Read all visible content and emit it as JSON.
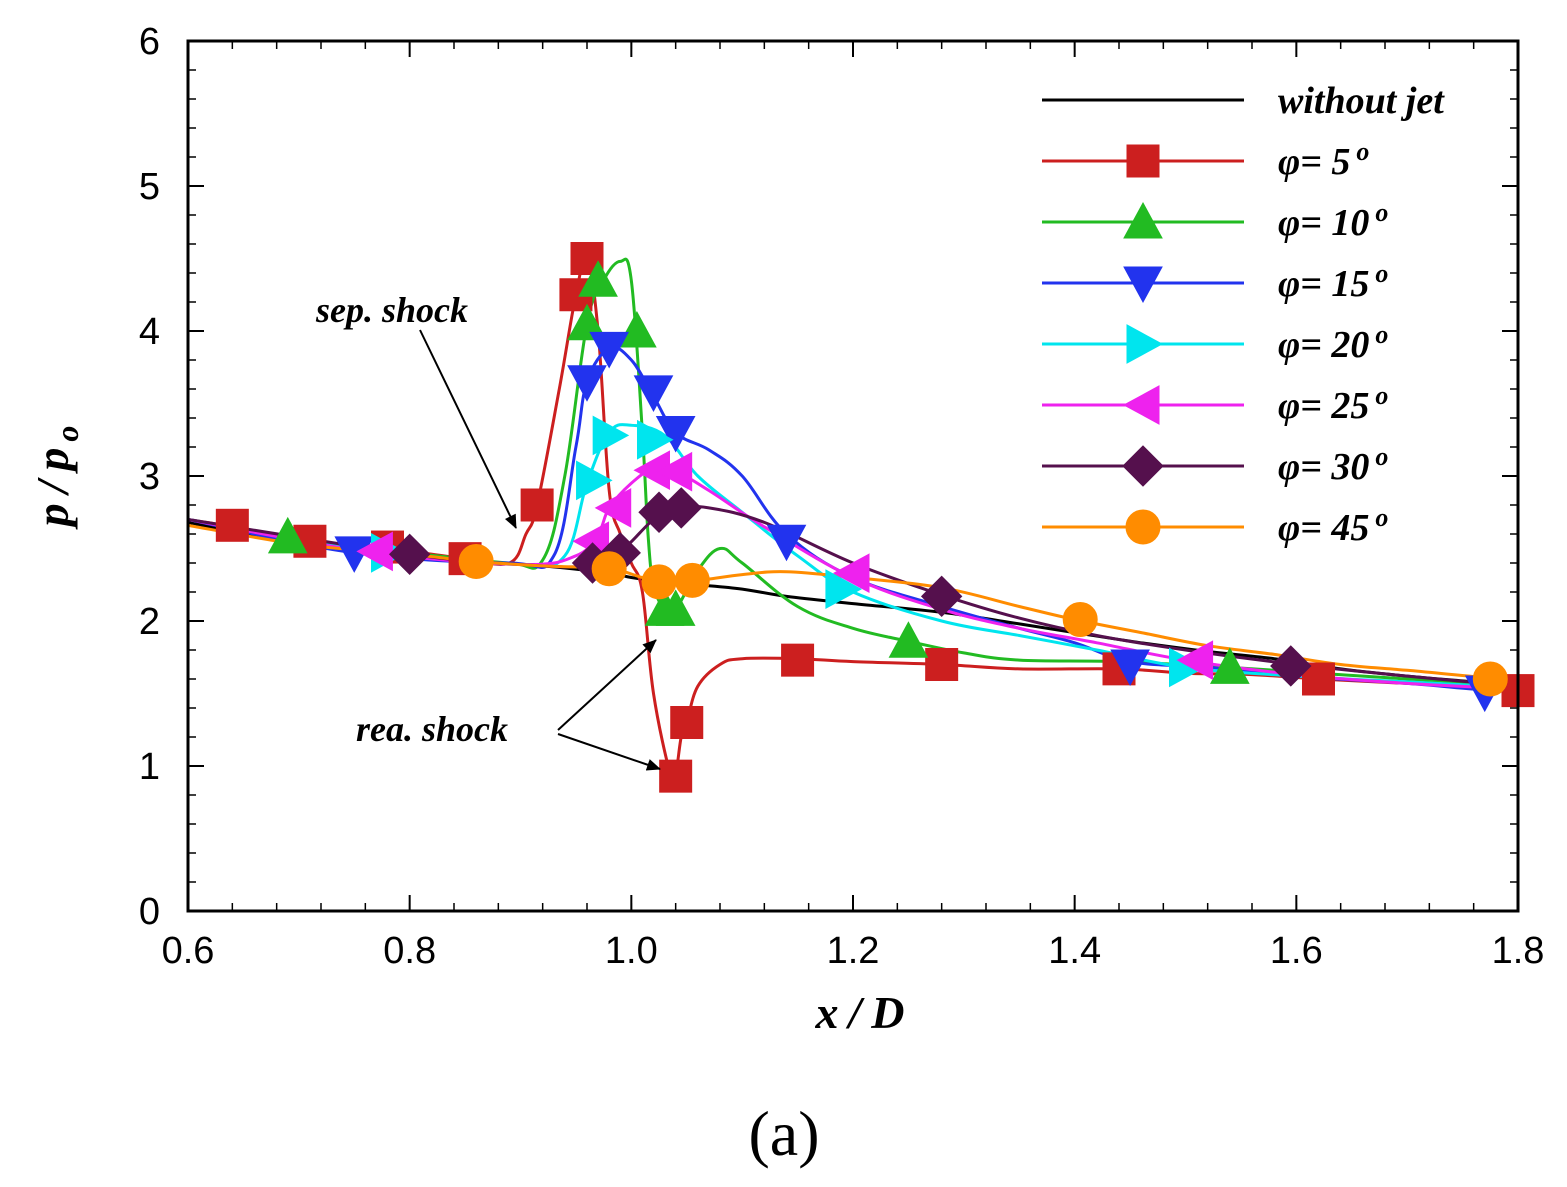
{
  "chart_data": {
    "type": "line",
    "xlabel": "x / D",
    "ylabel": "p / p o",
    "xlim": [
      0.6,
      1.8
    ],
    "ylim": [
      0,
      6
    ],
    "x_ticks": [
      "0.6",
      "0.8",
      "1.0",
      "1.2",
      "1.4",
      "1.6",
      "1.8"
    ],
    "y_ticks": [
      "0",
      "1",
      "2",
      "3",
      "4",
      "5",
      "6"
    ],
    "grid": false,
    "legend_position": "top-right",
    "panel_label": "(a)",
    "annotations": [
      {
        "text": "sep. shock",
        "target": [
          0.9,
          2.4
        ]
      },
      {
        "text": "rea. shock",
        "targets": [
          [
            1.02,
            2.05
          ],
          [
            1.02,
            0.93
          ]
        ]
      }
    ],
    "series": [
      {
        "name": "without jet",
        "color": "#000000",
        "marker": "none",
        "points": [
          [
            0.6,
            2.68
          ],
          [
            0.64,
            2.62
          ],
          [
            0.7,
            2.53
          ],
          [
            0.76,
            2.49
          ],
          [
            0.8,
            2.46
          ],
          [
            0.86,
            2.41
          ],
          [
            0.92,
            2.38
          ],
          [
            0.98,
            2.33
          ],
          [
            1.0,
            2.3
          ],
          [
            1.03,
            2.27
          ],
          [
            1.06,
            2.25
          ],
          [
            1.1,
            2.22
          ],
          [
            1.14,
            2.17
          ],
          [
            1.2,
            2.12
          ],
          [
            1.28,
            2.06
          ],
          [
            1.35,
            1.98
          ],
          [
            1.4,
            1.92
          ],
          [
            1.46,
            1.85
          ],
          [
            1.52,
            1.79
          ],
          [
            1.58,
            1.74
          ],
          [
            1.64,
            1.67
          ],
          [
            1.7,
            1.62
          ],
          [
            1.76,
            1.58
          ],
          [
            1.8,
            1.55
          ]
        ],
        "markers": []
      },
      {
        "name": "φ= 5 o",
        "color": "#cc1f1f",
        "marker": "square",
        "points": [
          [
            0.6,
            2.7
          ],
          [
            0.64,
            2.65
          ],
          [
            0.7,
            2.55
          ],
          [
            0.76,
            2.51
          ],
          [
            0.8,
            2.48
          ],
          [
            0.85,
            2.43
          ],
          [
            0.89,
            2.4
          ],
          [
            0.905,
            2.6
          ],
          [
            0.915,
            2.8
          ],
          [
            0.935,
            3.6
          ],
          [
            0.95,
            4.25
          ],
          [
            0.96,
            4.5
          ],
          [
            0.97,
            4.0
          ],
          [
            0.98,
            2.9
          ],
          [
            0.99,
            2.6
          ],
          [
            1.0,
            2.4
          ],
          [
            1.01,
            2.2
          ],
          [
            1.02,
            1.5
          ],
          [
            1.035,
            0.95
          ],
          [
            1.04,
            0.95
          ],
          [
            1.045,
            1.2
          ],
          [
            1.05,
            1.3
          ],
          [
            1.06,
            1.55
          ],
          [
            1.08,
            1.7
          ],
          [
            1.1,
            1.74
          ],
          [
            1.15,
            1.74
          ],
          [
            1.2,
            1.72
          ],
          [
            1.28,
            1.7
          ],
          [
            1.35,
            1.67
          ],
          [
            1.44,
            1.67
          ],
          [
            1.5,
            1.64
          ],
          [
            1.56,
            1.63
          ],
          [
            1.62,
            1.6
          ],
          [
            1.7,
            1.57
          ],
          [
            1.76,
            1.55
          ],
          [
            1.8,
            1.52
          ]
        ],
        "markers": [
          [
            0.64,
            2.66
          ],
          [
            0.71,
            2.55
          ],
          [
            0.78,
            2.51
          ],
          [
            0.85,
            2.43
          ],
          [
            0.915,
            2.8
          ],
          [
            0.95,
            4.25
          ],
          [
            0.96,
            4.5
          ],
          [
            1.04,
            0.93
          ],
          [
            1.05,
            1.3
          ],
          [
            1.15,
            1.73
          ],
          [
            1.28,
            1.7
          ],
          [
            1.44,
            1.67
          ],
          [
            1.62,
            1.6
          ],
          [
            1.8,
            1.52
          ]
        ]
      },
      {
        "name": "φ= 10 o",
        "color": "#22bb22",
        "marker": "triangle-up",
        "points": [
          [
            0.6,
            2.7
          ],
          [
            0.69,
            2.58
          ],
          [
            0.8,
            2.47
          ],
          [
            0.89,
            2.4
          ],
          [
            0.92,
            2.42
          ],
          [
            0.94,
            3.0
          ],
          [
            0.96,
            4.05
          ],
          [
            0.975,
            4.35
          ],
          [
            0.99,
            4.48
          ],
          [
            1.0,
            4.35
          ],
          [
            1.01,
            3.3
          ],
          [
            1.015,
            2.6
          ],
          [
            1.02,
            2.25
          ],
          [
            1.03,
            2.08
          ],
          [
            1.04,
            2.08
          ],
          [
            1.06,
            2.35
          ],
          [
            1.08,
            2.5
          ],
          [
            1.1,
            2.4
          ],
          [
            1.15,
            2.1
          ],
          [
            1.2,
            1.95
          ],
          [
            1.25,
            1.86
          ],
          [
            1.3,
            1.78
          ],
          [
            1.35,
            1.73
          ],
          [
            1.44,
            1.72
          ],
          [
            1.54,
            1.68
          ],
          [
            1.62,
            1.64
          ],
          [
            1.7,
            1.6
          ],
          [
            1.8,
            1.56
          ]
        ],
        "markers": [
          [
            0.69,
            2.58
          ],
          [
            0.96,
            4.05
          ],
          [
            0.97,
            4.35
          ],
          [
            1.005,
            4.0
          ],
          [
            1.03,
            2.08
          ],
          [
            1.04,
            2.08
          ],
          [
            1.25,
            1.86
          ],
          [
            1.54,
            1.68
          ]
        ]
      },
      {
        "name": "φ= 15 o",
        "color": "#2233ee",
        "marker": "triangle-down",
        "points": [
          [
            0.6,
            2.7
          ],
          [
            0.75,
            2.47
          ],
          [
            0.89,
            2.4
          ],
          [
            0.93,
            2.45
          ],
          [
            0.95,
            3.2
          ],
          [
            0.96,
            3.65
          ],
          [
            0.98,
            3.88
          ],
          [
            1.0,
            3.8
          ],
          [
            1.02,
            3.55
          ],
          [
            1.04,
            3.3
          ],
          [
            1.07,
            3.18
          ],
          [
            1.1,
            3.0
          ],
          [
            1.14,
            2.6
          ],
          [
            1.2,
            2.3
          ],
          [
            1.28,
            2.1
          ],
          [
            1.35,
            1.95
          ],
          [
            1.4,
            1.85
          ],
          [
            1.45,
            1.72
          ],
          [
            1.52,
            1.68
          ],
          [
            1.6,
            1.62
          ],
          [
            1.7,
            1.57
          ],
          [
            1.76,
            1.53
          ],
          [
            1.8,
            1.51
          ]
        ],
        "markers": [
          [
            0.75,
            2.47
          ],
          [
            0.96,
            3.65
          ],
          [
            0.98,
            3.88
          ],
          [
            1.02,
            3.58
          ],
          [
            1.04,
            3.3
          ],
          [
            1.14,
            2.55
          ],
          [
            1.45,
            1.69
          ],
          [
            1.77,
            1.51
          ]
        ]
      },
      {
        "name": "φ= 20 o",
        "color": "#00e5ee",
        "marker": "triangle-right",
        "points": [
          [
            0.6,
            2.7
          ],
          [
            0.78,
            2.47
          ],
          [
            0.9,
            2.39
          ],
          [
            0.94,
            2.45
          ],
          [
            0.96,
            2.95
          ],
          [
            0.98,
            3.3
          ],
          [
            1.0,
            3.35
          ],
          [
            1.03,
            3.28
          ],
          [
            1.06,
            3.0
          ],
          [
            1.1,
            2.75
          ],
          [
            1.15,
            2.45
          ],
          [
            1.2,
            2.2
          ],
          [
            1.28,
            2.0
          ],
          [
            1.35,
            1.9
          ],
          [
            1.42,
            1.8
          ],
          [
            1.5,
            1.68
          ],
          [
            1.6,
            1.62
          ],
          [
            1.7,
            1.58
          ],
          [
            1.8,
            1.54
          ]
        ],
        "markers": [
          [
            0.78,
            2.47
          ],
          [
            0.965,
            2.97
          ],
          [
            0.98,
            3.28
          ],
          [
            1.02,
            3.25
          ],
          [
            1.19,
            2.22
          ],
          [
            1.5,
            1.68
          ]
        ]
      },
      {
        "name": "φ= 25 o",
        "color": "#ee22ee",
        "marker": "triangle-left",
        "points": [
          [
            0.6,
            2.7
          ],
          [
            0.76,
            2.48
          ],
          [
            0.9,
            2.39
          ],
          [
            0.95,
            2.45
          ],
          [
            0.97,
            2.6
          ],
          [
            0.98,
            2.78
          ],
          [
            1.0,
            2.95
          ],
          [
            1.02,
            3.05
          ],
          [
            1.04,
            3.03
          ],
          [
            1.07,
            2.9
          ],
          [
            1.12,
            2.65
          ],
          [
            1.2,
            2.3
          ],
          [
            1.28,
            2.08
          ],
          [
            1.35,
            1.95
          ],
          [
            1.42,
            1.85
          ],
          [
            1.5,
            1.73
          ],
          [
            1.6,
            1.63
          ],
          [
            1.7,
            1.57
          ],
          [
            1.8,
            1.53
          ]
        ],
        "markers": [
          [
            0.77,
            2.48
          ],
          [
            0.965,
            2.55
          ],
          [
            0.985,
            2.78
          ],
          [
            1.02,
            3.04
          ],
          [
            1.04,
            3.03
          ],
          [
            1.2,
            2.33
          ],
          [
            1.51,
            1.73
          ]
        ]
      },
      {
        "name": "φ= 30 o",
        "color": "#55104d",
        "marker": "diamond",
        "points": [
          [
            0.6,
            2.7
          ],
          [
            0.8,
            2.46
          ],
          [
            0.9,
            2.39
          ],
          [
            0.96,
            2.38
          ],
          [
            0.99,
            2.48
          ],
          [
            1.02,
            2.7
          ],
          [
            1.04,
            2.78
          ],
          [
            1.07,
            2.78
          ],
          [
            1.12,
            2.68
          ],
          [
            1.2,
            2.4
          ],
          [
            1.28,
            2.18
          ],
          [
            1.35,
            2.02
          ],
          [
            1.42,
            1.9
          ],
          [
            1.5,
            1.8
          ],
          [
            1.6,
            1.7
          ],
          [
            1.7,
            1.62
          ],
          [
            1.8,
            1.55
          ]
        ],
        "markers": [
          [
            0.8,
            2.46
          ],
          [
            0.965,
            2.4
          ],
          [
            0.99,
            2.47
          ],
          [
            1.025,
            2.75
          ],
          [
            1.045,
            2.78
          ],
          [
            1.28,
            2.17
          ],
          [
            1.595,
            1.69
          ]
        ]
      },
      {
        "name": "φ= 45 o",
        "color": "#ff8c00",
        "marker": "circle",
        "points": [
          [
            0.6,
            2.66
          ],
          [
            0.7,
            2.53
          ],
          [
            0.8,
            2.46
          ],
          [
            0.86,
            2.41
          ],
          [
            0.92,
            2.38
          ],
          [
            0.98,
            2.36
          ],
          [
            1.01,
            2.3
          ],
          [
            1.03,
            2.27
          ],
          [
            1.06,
            2.28
          ],
          [
            1.1,
            2.32
          ],
          [
            1.14,
            2.34
          ],
          [
            1.2,
            2.3
          ],
          [
            1.28,
            2.23
          ],
          [
            1.35,
            2.1
          ],
          [
            1.4,
            2.01
          ],
          [
            1.46,
            1.92
          ],
          [
            1.52,
            1.83
          ],
          [
            1.58,
            1.77
          ],
          [
            1.64,
            1.7
          ],
          [
            1.7,
            1.66
          ],
          [
            1.77,
            1.61
          ],
          [
            1.8,
            1.6
          ]
        ],
        "markers": [
          [
            0.86,
            2.41
          ],
          [
            0.98,
            2.36
          ],
          [
            1.025,
            2.27
          ],
          [
            1.055,
            2.28
          ],
          [
            1.405,
            2.01
          ],
          [
            1.775,
            1.6
          ]
        ]
      }
    ]
  }
}
